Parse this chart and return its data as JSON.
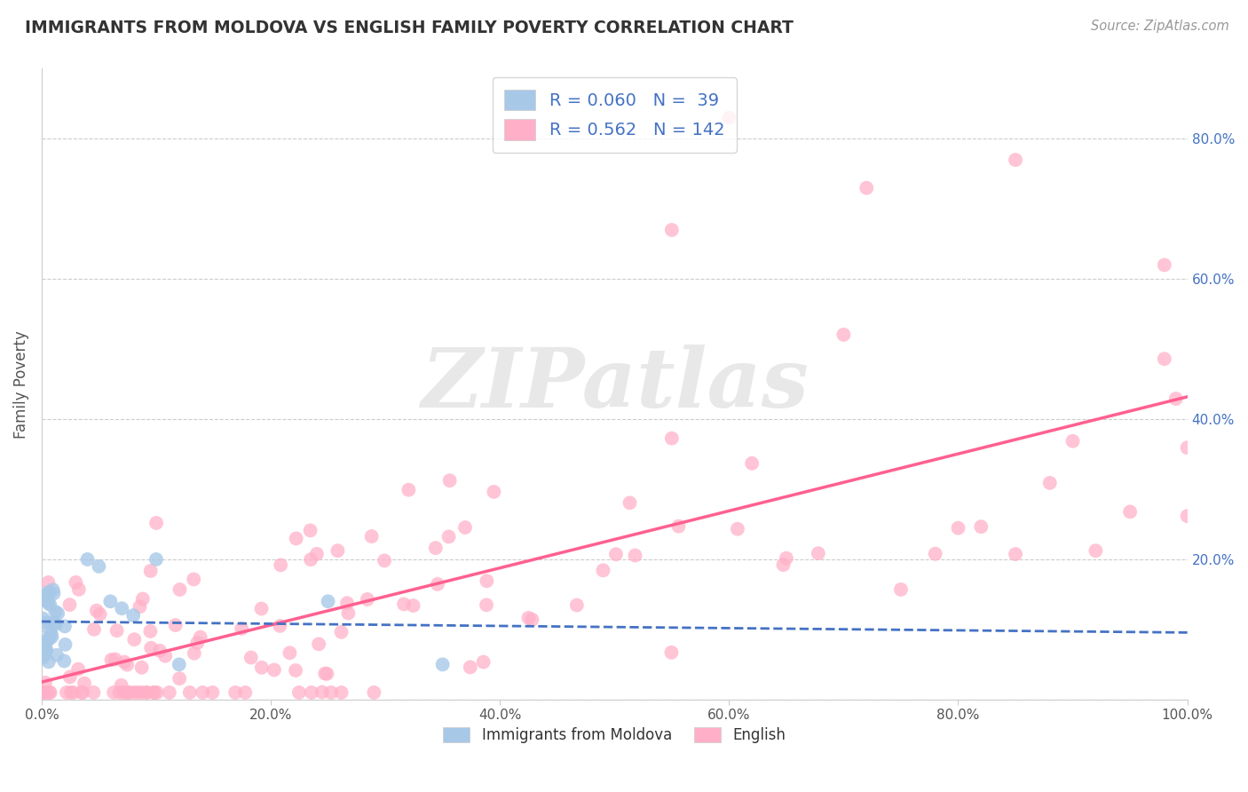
{
  "title": "IMMIGRANTS FROM MOLDOVA VS ENGLISH FAMILY POVERTY CORRELATION CHART",
  "source": "Source: ZipAtlas.com",
  "ylabel": "Family Poverty",
  "xlabel": "",
  "legend_bottom_labels": [
    "Immigrants from Moldova",
    "English"
  ],
  "blue_R": 0.06,
  "blue_N": 39,
  "pink_R": 0.562,
  "pink_N": 142,
  "blue_color": "#A8C8E8",
  "pink_color": "#FFB0C8",
  "blue_line_color": "#4472C4",
  "pink_line_color": "#FF6090",
  "label_color": "#4472C4",
  "title_color": "#333333",
  "source_color": "#999999",
  "grid_color": "#CCCCCC",
  "spine_color": "#CCCCCC",
  "watermark": "ZIPatlas",
  "xlim": [
    0.0,
    1.0
  ],
  "ylim": [
    0.0,
    0.9
  ],
  "xtick_positions": [
    0.0,
    0.2,
    0.4,
    0.6,
    0.8,
    1.0
  ],
  "xticklabels": [
    "0.0%",
    "20.0%",
    "40.0%",
    "60.0%",
    "80.0%",
    "100.0%"
  ],
  "ytick_positions": [
    0.0,
    0.2,
    0.4,
    0.6,
    0.8
  ],
  "yticklabels": [
    "",
    "20.0%",
    "40.0%",
    "60.0%",
    "80.0%"
  ]
}
